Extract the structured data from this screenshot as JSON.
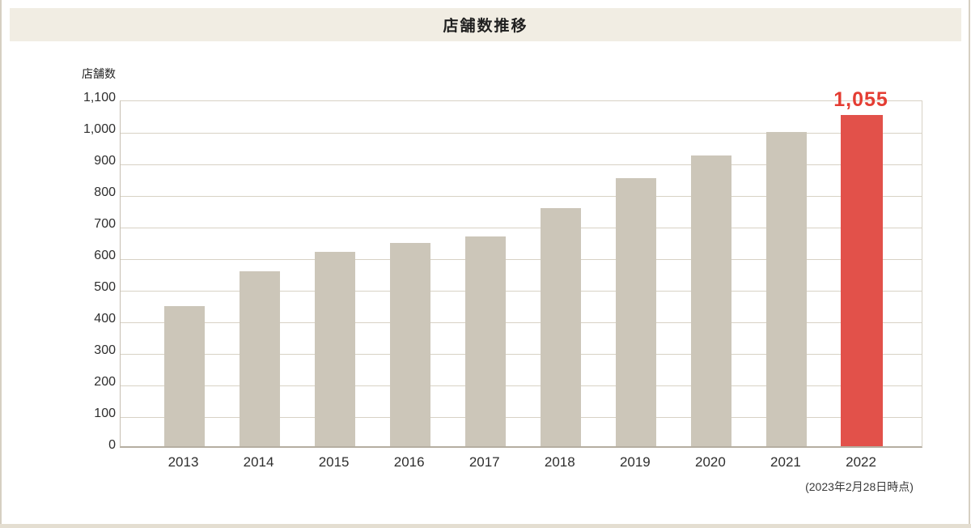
{
  "chart_data": {
    "type": "bar",
    "title": "店舗数推移",
    "ylabel": "店舗数",
    "xlabel": "",
    "categories": [
      "2013",
      "2014",
      "2015",
      "2016",
      "2017",
      "2018",
      "2019",
      "2020",
      "2021",
      "2022"
    ],
    "values": [
      450,
      560,
      620,
      650,
      670,
      760,
      855,
      925,
      1000,
      1055
    ],
    "ylim": [
      0,
      1100
    ],
    "ytick_step": 100,
    "grid": true,
    "legend_position": "none",
    "bar_color": "#ccc6b9",
    "highlight": {
      "index": 9,
      "color": "#e2514a",
      "label": "1,055",
      "label_color": "#e43d33"
    },
    "note": "(2023年2月28日時点)"
  }
}
